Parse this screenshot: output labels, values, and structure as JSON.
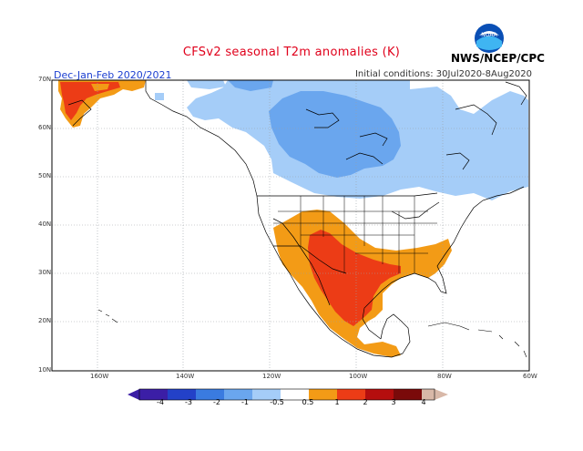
{
  "header": {
    "title": "CFSv2 seasonal T2m anomalies (K)",
    "period": "Dec-Jan-Feb 2020/2021",
    "initial_conditions": "Initial conditions: 30Jul2020-8Aug2020",
    "agency": "NWS/NCEP/CPC",
    "logo_text": "NOAA"
  },
  "map": {
    "lat_labels": [
      "70N",
      "60N",
      "50N",
      "40N",
      "30N",
      "20N",
      "10N"
    ],
    "lon_labels": [
      "160W",
      "140W",
      "120W",
      "100W",
      "80W",
      "60W"
    ],
    "anomaly_regions": [
      {
        "name": "alaska-warm",
        "level": "0.5-1"
      },
      {
        "name": "alaska-warm-strong",
        "level": "1-2"
      },
      {
        "name": "canada-cold",
        "level": "-1 to -0.5"
      },
      {
        "name": "hudson-bay-cold",
        "level": "-2 to -1"
      },
      {
        "name": "southern-us-warm",
        "level": "0.5-1"
      },
      {
        "name": "texas-mexico-warm",
        "level": "1-2"
      }
    ]
  },
  "colorbar": {
    "labels": [
      "-4",
      "-3",
      "-2",
      "-1",
      "-0.5",
      "0.5",
      "1",
      "2",
      "3",
      "4"
    ],
    "colors": [
      "#3b1ea6",
      "#2341c8",
      "#3a7be0",
      "#6aa6ee",
      "#a5cdf8",
      "#ffffff",
      "#f39b16",
      "#ec3c16",
      "#b50e0e",
      "#7a0a0a",
      "#d8b8a8"
    ]
  }
}
